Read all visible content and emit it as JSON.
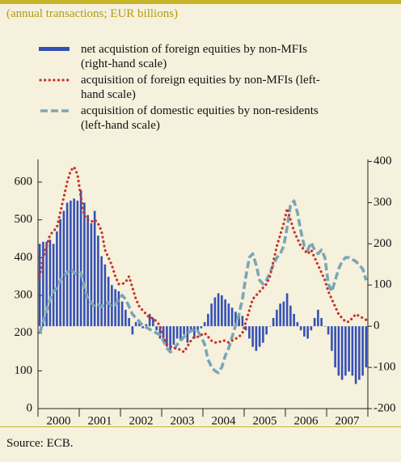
{
  "chart_data": {
    "type": "bar_line",
    "subtitle": "(annual transactions; EUR billions)",
    "source": "Source: ECB.",
    "categories": [
      null,
      null,
      null,
      null,
      null,
      null,
      "2000",
      null,
      null,
      null,
      null,
      null,
      null,
      null,
      null,
      null,
      null,
      null,
      "2001",
      null,
      null,
      null,
      null,
      null,
      null,
      null,
      null,
      null,
      null,
      null,
      "2002",
      null,
      null,
      null,
      null,
      null,
      null,
      null,
      null,
      null,
      null,
      null,
      "2003",
      null,
      null,
      null,
      null,
      null,
      null,
      null,
      null,
      null,
      null,
      null,
      "2004",
      null,
      null,
      null,
      null,
      null,
      null,
      null,
      null,
      null,
      null,
      null,
      "2005",
      null,
      null,
      null,
      null,
      null,
      null,
      null,
      null,
      null,
      null,
      null,
      "2006",
      null,
      null,
      null,
      null,
      null,
      null,
      null,
      null,
      null,
      null,
      null,
      "2007",
      null,
      null,
      null,
      null,
      null
    ],
    "ylim": [
      0,
      660
    ],
    "yticks": [
      0,
      100,
      200,
      300,
      400,
      500,
      600
    ],
    "y2lim": [
      -200,
      405
    ],
    "y2ticks": [
      -200,
      -100,
      0,
      100,
      200,
      300,
      400
    ],
    "series": [
      {
        "name": "net acquistion of foreign equities by non-MFIs (right-hand scale)",
        "type": "bar",
        "axis": "y2",
        "color": "#3550b5",
        "values": [
          200,
          205,
          205,
          210,
          200,
          230,
          260,
          280,
          300,
          305,
          310,
          305,
          330,
          300,
          270,
          250,
          280,
          220,
          170,
          150,
          120,
          100,
          90,
          85,
          60,
          40,
          20,
          -20,
          10,
          15,
          -5,
          5,
          30,
          20,
          -10,
          -30,
          -40,
          -50,
          -60,
          -45,
          -30,
          -35,
          -20,
          -40,
          -10,
          -30,
          -15,
          -5,
          10,
          30,
          55,
          70,
          80,
          75,
          65,
          55,
          45,
          35,
          30,
          25,
          -10,
          -30,
          -50,
          -60,
          -50,
          -40,
          -20,
          0,
          20,
          40,
          55,
          60,
          80,
          50,
          30,
          10,
          -10,
          -25,
          -30,
          -10,
          20,
          40,
          20,
          0,
          -20,
          -60,
          -100,
          -120,
          -130,
          -120,
          -110,
          -120,
          -140,
          -130,
          -120,
          -100
        ]
      },
      {
        "name": "acquisition of foreign equities by non-MFIs (left-hand scale)",
        "type": "dotted",
        "color": "#c8342a",
        "values": [
          350,
          400,
          430,
          460,
          470,
          480,
          520,
          560,
          600,
          630,
          640,
          620,
          560,
          510,
          500,
          495,
          500,
          490,
          470,
          420,
          400,
          380,
          350,
          330,
          330,
          335,
          350,
          320,
          290,
          270,
          260,
          250,
          240,
          240,
          230,
          220,
          190,
          170,
          165,
          160,
          160,
          155,
          150,
          165,
          180,
          190,
          190,
          195,
          200,
          190,
          180,
          175,
          175,
          180,
          180,
          175,
          180,
          185,
          190,
          200,
          230,
          260,
          290,
          300,
          310,
          320,
          330,
          350,
          390,
          430,
          460,
          490,
          530,
          500,
          470,
          450,
          430,
          420,
          410,
          420,
          400,
          380,
          360,
          340,
          310,
          290,
          270,
          250,
          240,
          230,
          230,
          240,
          250,
          245,
          240,
          235
        ]
      },
      {
        "name": "acquisition of domestic equities by non-residents (left-hand scale)",
        "type": "dashed",
        "color": "#7aa6b6",
        "values": [
          200,
          230,
          260,
          290,
          310,
          320,
          340,
          350,
          360,
          370,
          360,
          355,
          360,
          320,
          290,
          280,
          270,
          275,
          270,
          280,
          280,
          270,
          275,
          290,
          300,
          290,
          270,
          250,
          240,
          230,
          220,
          215,
          210,
          205,
          200,
          195,
          180,
          160,
          150,
          155,
          170,
          180,
          190,
          200,
          205,
          210,
          205,
          190,
          170,
          130,
          110,
          100,
          95,
          110,
          140,
          160,
          190,
          220,
          250,
          290,
          350,
          400,
          410,
          380,
          340,
          330,
          340,
          360,
          380,
          400,
          410,
          430,
          480,
          540,
          550,
          520,
          470,
          430,
          420,
          440,
          420,
          410,
          420,
          400,
          330,
          310,
          340,
          370,
          390,
          400,
          400,
          395,
          390,
          380,
          370,
          340
        ]
      }
    ]
  }
}
